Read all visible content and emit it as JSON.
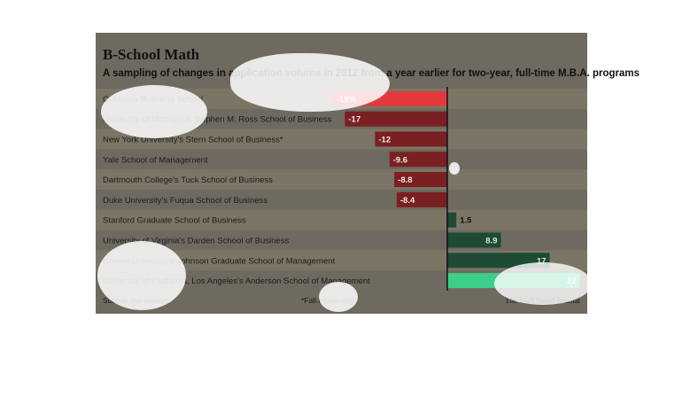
{
  "header": {
    "title": "B-School Math",
    "subtitle": "A sampling of changes in application volume in 2012 from a year earlier for two-year, full-time M.B.A. programs"
  },
  "footer": {
    "source": "Source: the schools",
    "note": "*Fall intake only",
    "publisher": "The Wall Street Journal"
  },
  "colors": {
    "negative": "#7a1f22",
    "negative_highlight": "#e23a3c",
    "positive": "#1f4a33",
    "positive_highlight": "#3ccf8a",
    "row_band": "#7b7566",
    "label_text": "#1c1c1c"
  },
  "chart_data": {
    "type": "bar",
    "orientation": "horizontal",
    "categories": [
      "Columbia Business School",
      "University of Michigan's Stephen M. Ross School of Business",
      "New York University's Stern School of Business*",
      "Yale School of Management",
      "Dartmouth College's Tuck School of Business",
      "Duke University's Fuqua School of Business",
      "Stanford Graduate School of Business",
      "University of Virginia's Darden School of Business",
      "Cornell University's Johnson Graduate School of Management",
      "University of California, Los Angeles's Anderson School of Management"
    ],
    "values": [
      -19,
      -17,
      -12,
      -9.6,
      -8.8,
      -8.4,
      1.5,
      8.9,
      17,
      22
    ],
    "data_labels": [
      "-19%",
      "-17",
      "-12",
      "-9.6",
      "-8.8",
      "-8.4",
      "1.5",
      "8.9",
      "17",
      "22"
    ],
    "xlim": [
      -20,
      22
    ],
    "unit": "%"
  }
}
